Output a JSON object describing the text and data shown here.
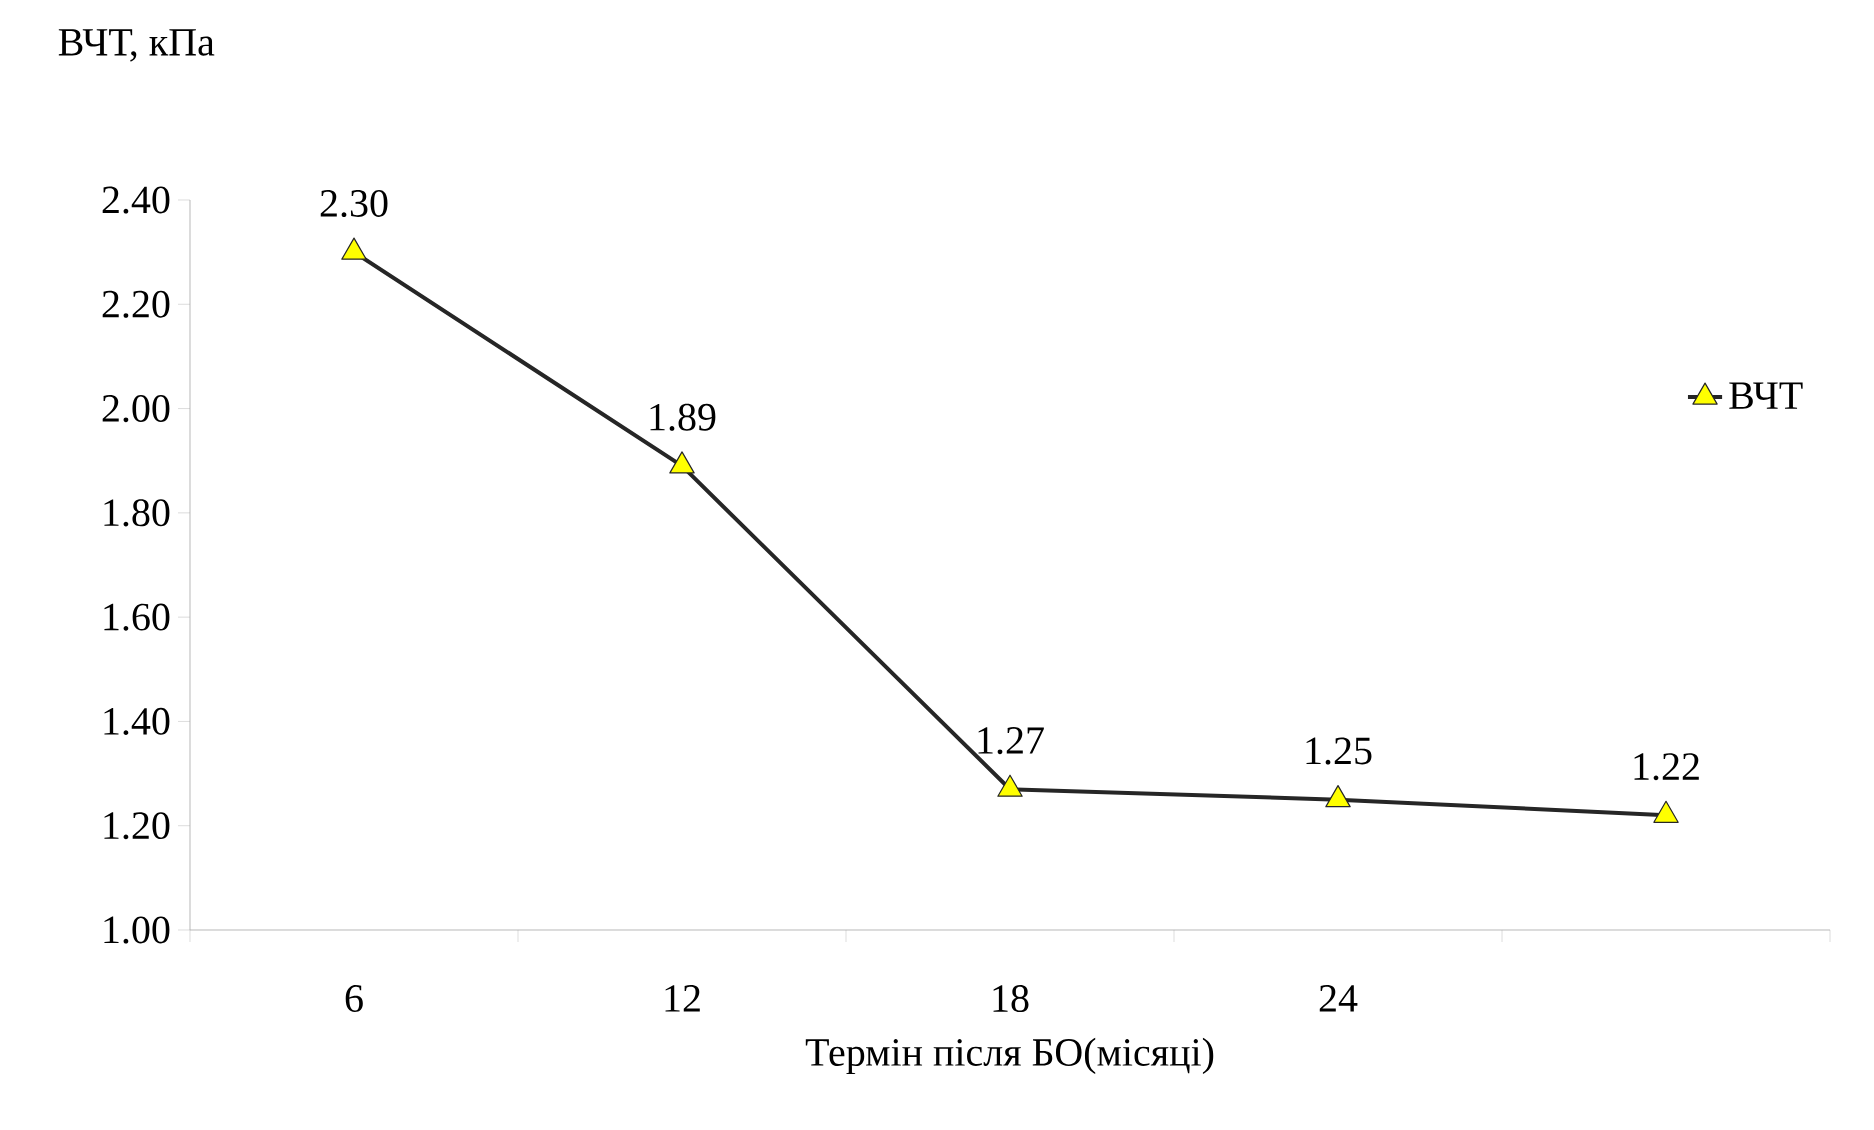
{
  "chart_data": {
    "type": "line",
    "xlabel": "Термін після БО(місяці)",
    "ylabel": "ВЧТ, кПа",
    "categories": [
      "6",
      "12",
      "18",
      "24",
      null
    ],
    "series": [
      {
        "name": "ВЧТ",
        "color": "#ffff00",
        "values": [
          2.3,
          1.89,
          1.27,
          1.25,
          1.22
        ],
        "value_labels": [
          "2.30",
          "1.89",
          "1.27",
          "1.25",
          "1.22"
        ]
      }
    ],
    "ylim": [
      1.0,
      2.4
    ],
    "yticks": [
      {
        "value": 1.0,
        "label": "1.00"
      },
      {
        "value": 1.2,
        "label": "1.20"
      },
      {
        "value": 1.4,
        "label": "1.40"
      },
      {
        "value": 1.6,
        "label": "1.60"
      },
      {
        "value": 1.8,
        "label": "1.80"
      },
      {
        "value": 2.0,
        "label": "2.00"
      },
      {
        "value": 2.2,
        "label": "2.20"
      },
      {
        "value": 2.4,
        "label": "2.40"
      }
    ],
    "marker": "triangle",
    "line_style": "solid",
    "legend": "right",
    "grid": false
  }
}
